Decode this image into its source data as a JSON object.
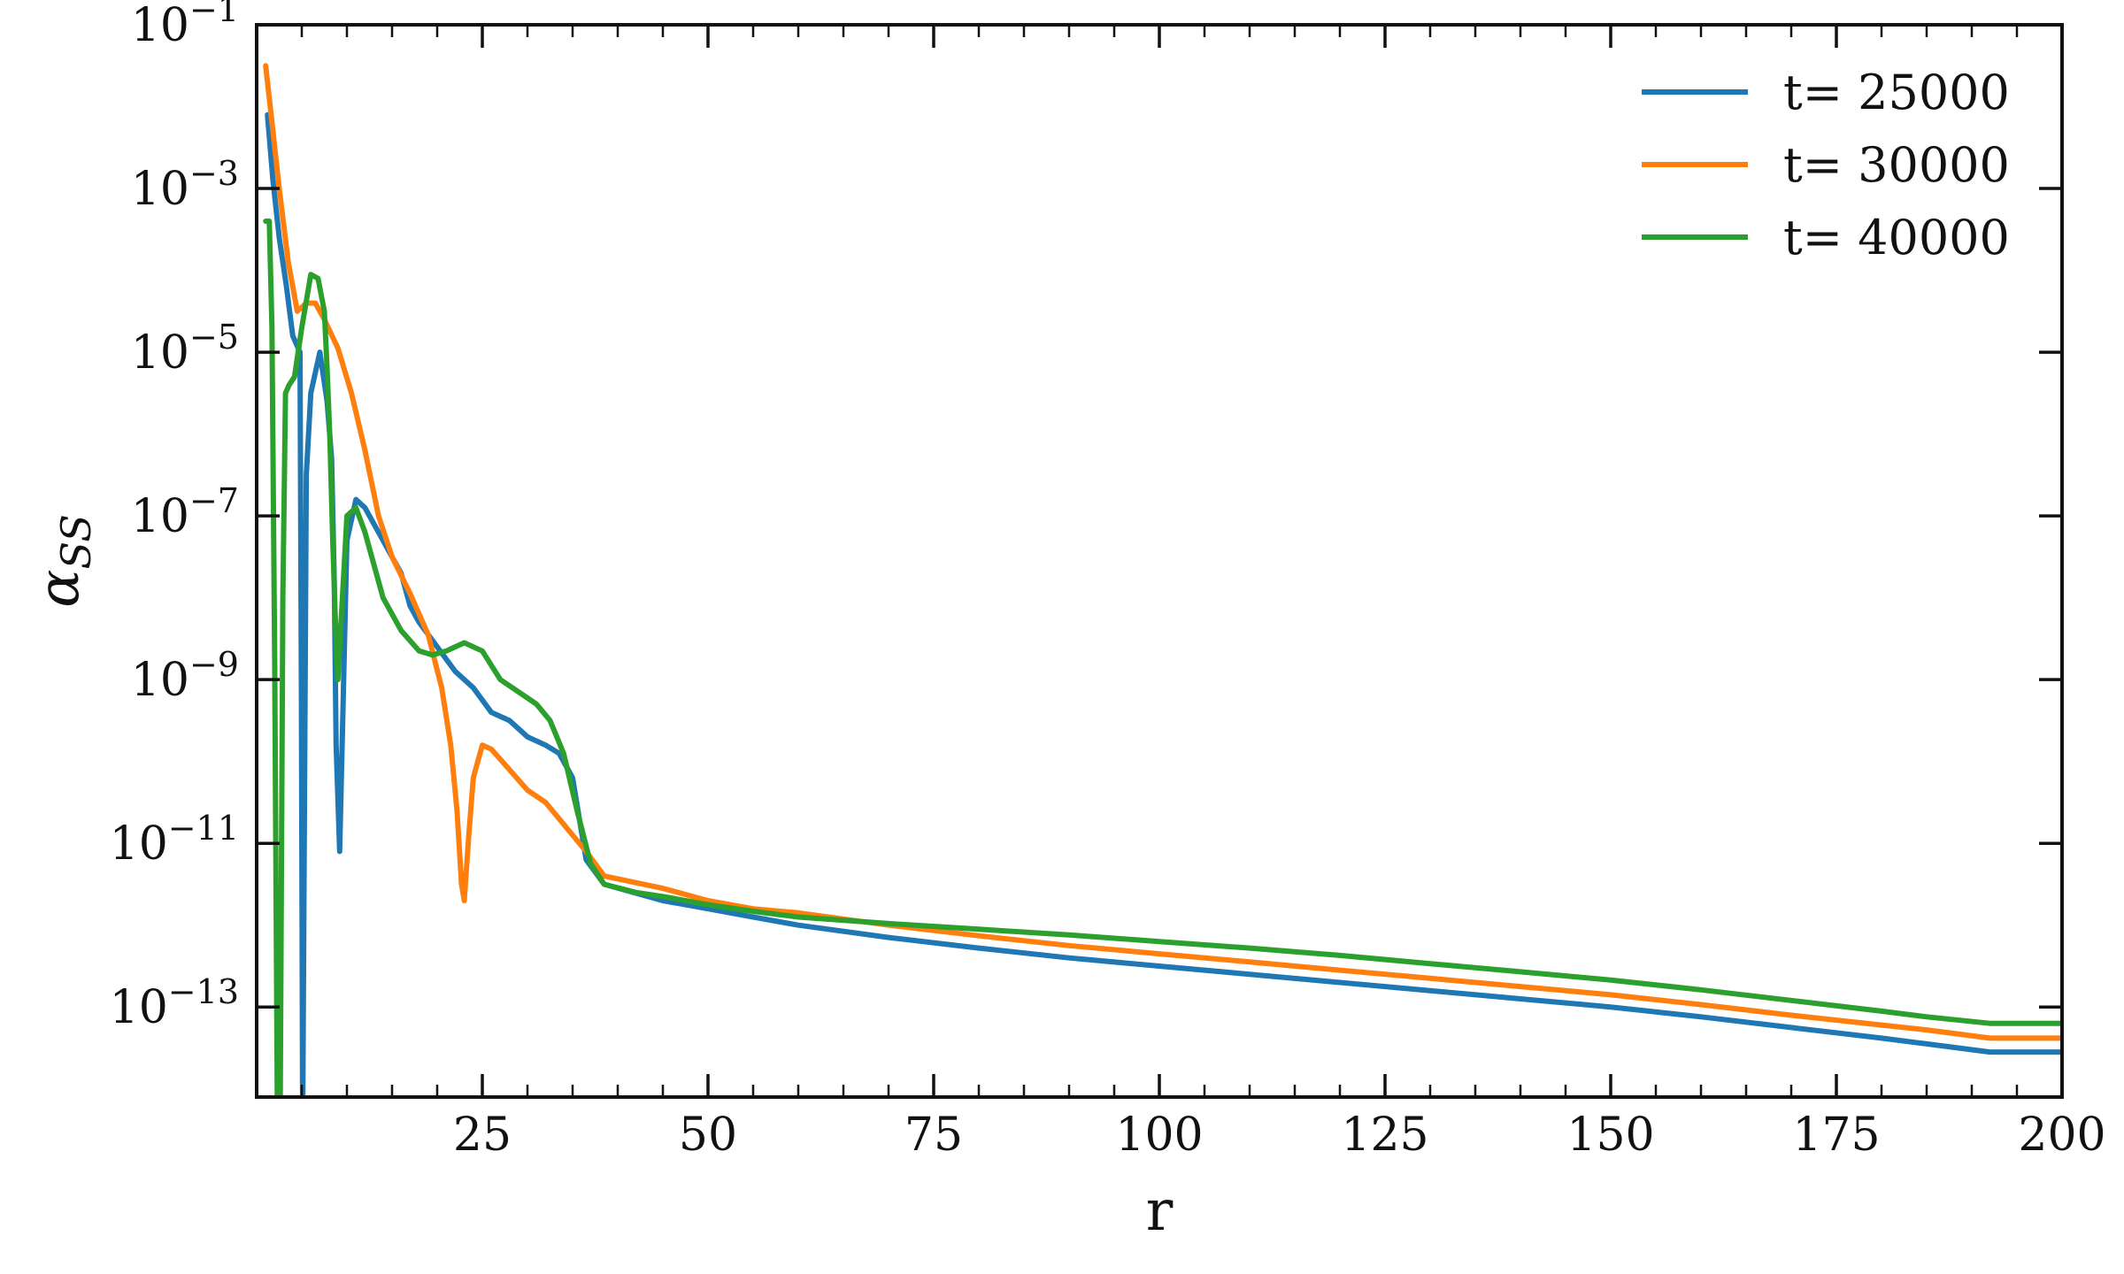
{
  "chart_data": {
    "type": "line",
    "title": "",
    "xlabel": "r",
    "ylabel": "α_SS",
    "xlim": [
      0,
      200
    ],
    "ylim_log10": [
      -14.1,
      -1
    ],
    "yscale": "log",
    "grid": false,
    "legend_placement": "top-right",
    "x_ticks": [
      25,
      50,
      75,
      100,
      125,
      150,
      175,
      200
    ],
    "x_tick_labels": [
      "25",
      "50",
      "75",
      "100",
      "125",
      "150",
      "175",
      "200"
    ],
    "y_ticks_log10": [
      -1,
      -3,
      -5,
      -7,
      -9,
      -11,
      -13
    ],
    "y_tick_labels": [
      {
        "base": "10",
        "exp": "−1"
      },
      {
        "base": "10",
        "exp": "−3"
      },
      {
        "base": "10",
        "exp": "−5"
      },
      {
        "base": "10",
        "exp": "−7"
      },
      {
        "base": "10",
        "exp": "−9"
      },
      {
        "base": "10",
        "exp": "−11"
      },
      {
        "base": "10",
        "exp": "−13"
      }
    ],
    "series": [
      {
        "name": "t= 25000",
        "color": "#1f77b4",
        "x": [
          1.2,
          1.8,
          2.5,
          3.3,
          4.0,
          4.8,
          4.95,
          5.1,
          5.5,
          6.0,
          7.0,
          7.8,
          8.3,
          8.6,
          8.8,
          9.2,
          10.0,
          11.0,
          12.0,
          13.5,
          15.0,
          16.0,
          17.0,
          18.0,
          20.0,
          22.0,
          24.0,
          26.0,
          28.0,
          30.0,
          32.0,
          33.5,
          35.0,
          36.5,
          38.5,
          45.0,
          50.0,
          55.0,
          60.0,
          70.0,
          80.0,
          90.0,
          100.0,
          110.0,
          120.0,
          130.0,
          140.0,
          150.0,
          160.0,
          170.0,
          180.0,
          185.0,
          192.0,
          196.0,
          200.0
        ],
        "y_log10": [
          -2.1,
          -2.9,
          -3.6,
          -4.2,
          -4.8,
          -5.0,
          -9.0,
          -14.5,
          -6.5,
          -5.5,
          -5.0,
          -5.6,
          -6.3,
          -7.8,
          -9.8,
          -11.1,
          -7.3,
          -6.8,
          -6.9,
          -7.2,
          -7.5,
          -7.7,
          -8.1,
          -8.3,
          -8.6,
          -8.9,
          -9.1,
          -9.4,
          -9.5,
          -9.7,
          -9.8,
          -9.9,
          -10.2,
          -11.2,
          -11.5,
          -11.7,
          -11.8,
          -11.9,
          -12.0,
          -12.15,
          -12.28,
          -12.4,
          -12.5,
          -12.6,
          -12.7,
          -12.8,
          -12.9,
          -13.0,
          -13.12,
          -13.25,
          -13.38,
          -13.45,
          -13.55,
          -13.55,
          -13.55
        ]
      },
      {
        "name": "t= 30000",
        "color": "#ff7f0e",
        "x": [
          1.0,
          1.8,
          2.5,
          3.5,
          4.5,
          5.5,
          6.5,
          7.5,
          9.0,
          10.5,
          12.0,
          13.5,
          15.0,
          17.0,
          19.0,
          20.5,
          21.5,
          22.2,
          22.7,
          23.0,
          23.5,
          24.0,
          25.0,
          26.0,
          28.0,
          30.0,
          32.0,
          33.5,
          35.0,
          36.5,
          38.5,
          45.0,
          50.0,
          55.0,
          60.0,
          70.0,
          80.0,
          90.0,
          100.0,
          110.0,
          120.0,
          130.0,
          140.0,
          150.0,
          160.0,
          170.0,
          180.0,
          185.0,
          192.0,
          196.0,
          200.0
        ],
        "y_log10": [
          -1.5,
          -2.3,
          -3.0,
          -3.9,
          -4.5,
          -4.4,
          -4.4,
          -4.6,
          -4.95,
          -5.5,
          -6.2,
          -7.0,
          -7.5,
          -7.95,
          -8.45,
          -9.1,
          -9.8,
          -10.6,
          -11.5,
          -11.7,
          -10.9,
          -10.2,
          -9.8,
          -9.85,
          -10.1,
          -10.35,
          -10.5,
          -10.7,
          -10.9,
          -11.1,
          -11.4,
          -11.55,
          -11.7,
          -11.8,
          -11.85,
          -12.0,
          -12.13,
          -12.25,
          -12.35,
          -12.45,
          -12.55,
          -12.65,
          -12.75,
          -12.85,
          -12.97,
          -13.1,
          -13.22,
          -13.28,
          -13.38,
          -13.38,
          -13.38
        ]
      },
      {
        "name": "t= 40000",
        "color": "#2ca02c",
        "x": [
          1.0,
          1.4,
          1.7,
          2.0,
          2.3,
          2.6,
          2.9,
          3.2,
          3.6,
          4.2,
          5.0,
          6.0,
          6.8,
          7.5,
          7.8,
          8.1,
          8.4,
          8.7,
          9.0,
          10.0,
          11.0,
          12.0,
          14.0,
          16.0,
          18.0,
          19.5,
          21.0,
          23.0,
          25.0,
          27.0,
          29.0,
          31.0,
          32.5,
          34.0,
          35.5,
          37.0,
          38.5,
          42.0,
          45.0,
          50.0,
          55.0,
          60.0,
          70.0,
          80.0,
          90.0,
          100.0,
          110.0,
          120.0,
          130.0,
          140.0,
          150.0,
          160.0,
          170.0,
          180.0,
          185.0,
          192.0,
          196.0,
          200.0
        ],
        "y_log10": [
          -3.4,
          -3.4,
          -4.7,
          -8.8,
          -14.5,
          -14.5,
          -8.0,
          -5.5,
          -5.4,
          -5.3,
          -4.7,
          -4.05,
          -4.1,
          -4.5,
          -5.2,
          -6.0,
          -7.2,
          -8.2,
          -9.0,
          -7.0,
          -6.9,
          -7.2,
          -8.0,
          -8.4,
          -8.65,
          -8.7,
          -8.65,
          -8.55,
          -8.65,
          -9.0,
          -9.15,
          -9.3,
          -9.5,
          -9.9,
          -10.6,
          -11.25,
          -11.5,
          -11.6,
          -11.65,
          -11.75,
          -11.83,
          -11.9,
          -11.98,
          -12.05,
          -12.12,
          -12.2,
          -12.28,
          -12.37,
          -12.47,
          -12.57,
          -12.67,
          -12.79,
          -12.92,
          -13.05,
          -13.12,
          -13.2,
          -13.2,
          -13.2
        ]
      }
    ]
  }
}
